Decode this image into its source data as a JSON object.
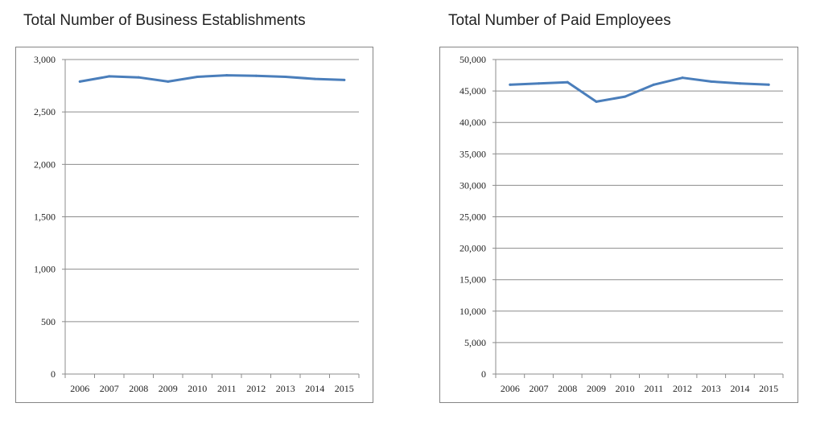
{
  "chart_data": [
    {
      "type": "line",
      "title": "Total Number of Business Establishments",
      "xlabel": "",
      "ylabel": "",
      "categories": [
        "2006",
        "2007",
        "2008",
        "2009",
        "2010",
        "2011",
        "2012",
        "2013",
        "2014",
        "2015"
      ],
      "series": [
        {
          "values": [
            2790,
            2840,
            2830,
            2790,
            2835,
            2850,
            2845,
            2835,
            2815,
            2805
          ]
        }
      ],
      "ylim": [
        0,
        3000
      ],
      "yticks": [
        0,
        500,
        1000,
        1500,
        2000,
        2500,
        3000
      ],
      "ytick_labels": [
        "0",
        "500",
        "1,000",
        "1,500",
        "2,000",
        "2,500",
        "3,000"
      ],
      "grid": true,
      "line_color": "#4a7ebb"
    },
    {
      "type": "line",
      "title": "Total Number of Paid Employees",
      "xlabel": "",
      "ylabel": "",
      "categories": [
        "2006",
        "2007",
        "2008",
        "2009",
        "2010",
        "2011",
        "2012",
        "2013",
        "2014",
        "2015"
      ],
      "series": [
        {
          "values": [
            46000,
            46200,
            46400,
            43300,
            44100,
            46000,
            47100,
            46500,
            46200,
            46000
          ]
        }
      ],
      "ylim": [
        0,
        50000
      ],
      "yticks": [
        0,
        5000,
        10000,
        15000,
        20000,
        25000,
        30000,
        35000,
        40000,
        45000,
        50000
      ],
      "ytick_labels": [
        "0",
        "5,000",
        "10,000",
        "15,000",
        "20,000",
        "25,000",
        "30,000",
        "35,000",
        "40,000",
        "45,000",
        "50,000"
      ],
      "grid": true,
      "line_color": "#4a7ebb"
    }
  ]
}
